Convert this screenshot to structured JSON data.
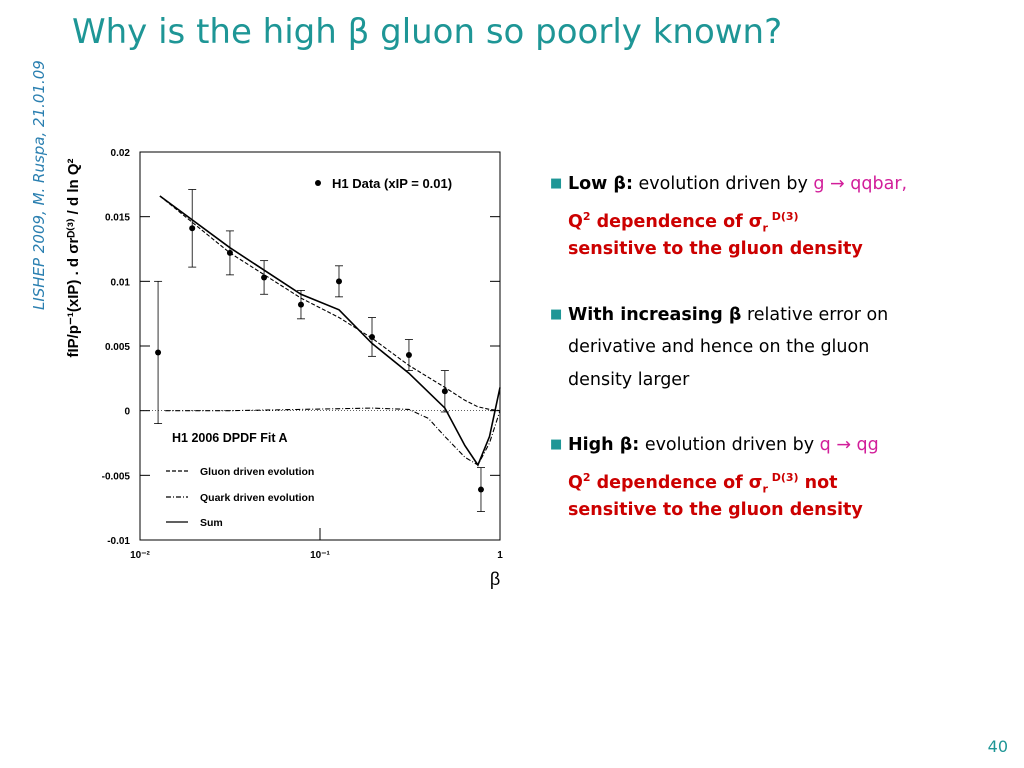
{
  "slide": {
    "title": "Why is the high β gluon so poorly known?",
    "side_label": "LISHEP 2009, M. Ruspa, 21.01.09",
    "page_number": "40",
    "bullets": [
      {
        "lines": [
          [
            "Low β:",
            " evolution driven by ",
            "g → qqbar,"
          ],
          [
            "Q",
            "2",
            " dependence of σ",
            "r",
            " D(3)"
          ],
          [
            "sensitive to the gluon density"
          ]
        ]
      },
      {
        "lines": [
          [
            "With increasing β",
            " relative error on"
          ],
          [
            "derivative and hence on the gluon"
          ],
          [
            "density larger"
          ]
        ]
      },
      {
        "lines": [
          [
            "High β:",
            " evolution driven by ",
            "q → qg"
          ],
          [
            "Q",
            "2",
            " dependence of σ",
            "r",
            " D(3)",
            " not"
          ],
          [
            "sensitive to the gluon density"
          ]
        ]
      }
    ]
  },
  "chart_data": {
    "type": "scatter-lines",
    "xlabel": "β",
    "ylabel": "fIP/p⁻¹(xIP) . d σrᴰ⁽³⁾ / d ln Q²",
    "annotation": "H1 2006 DPDF Fit A",
    "xlog": true,
    "xlim": [
      0.01,
      1
    ],
    "xticks": [
      {
        "value": 0.01,
        "label": "10⁻²"
      },
      {
        "value": 0.1,
        "label": "10⁻¹"
      },
      1
    ],
    "ylim": [
      -0.01,
      0.02
    ],
    "yticks": [
      -0.01,
      -0.005,
      0,
      0.005,
      0.01,
      0.015,
      0.02
    ],
    "series": [
      {
        "name": "H1 Data (xIP = 0.01)",
        "kind": "points",
        "color": "#000000",
        "x": [
          0.0126,
          0.0195,
          0.0316,
          0.0489,
          0.0784,
          0.1275,
          0.1945,
          0.312,
          0.494,
          0.784
        ],
        "values": [
          0.0045,
          0.0141,
          0.0122,
          0.0103,
          0.0082,
          0.01,
          0.0057,
          0.0043,
          0.0015,
          -0.0061
        ],
        "errors": [
          0.0055,
          0.003,
          0.0017,
          0.0013,
          0.0011,
          0.0012,
          0.0015,
          0.0012,
          0.0016,
          0.0017
        ]
      },
      {
        "name": "Gluon driven evolution",
        "kind": "line",
        "dash": "4,2",
        "color": "#000000",
        "x": [
          0.0129,
          0.0316,
          0.0784,
          0.1275,
          0.1945,
          0.312,
          0.494,
          0.638,
          0.754,
          0.874,
          1.0
        ],
        "values": [
          0.0166,
          0.0122,
          0.0087,
          0.0072,
          0.0056,
          0.0035,
          0.0018,
          0.0008,
          0.0003,
          0.0001,
          0.0
        ]
      },
      {
        "name": "Quark driven evolution",
        "kind": "line",
        "dash": "5,2,1,2",
        "color": "#000000",
        "x": [
          0.0138,
          0.0316,
          0.0784,
          0.1945,
          0.312,
          0.4,
          0.494,
          0.638,
          0.754,
          0.874,
          1.0
        ],
        "values": [
          0.0,
          0.0,
          0.0001,
          0.0002,
          0.0001,
          -0.0006,
          -0.002,
          -0.0036,
          -0.0042,
          -0.0025,
          0.0
        ]
      },
      {
        "name": "Sum",
        "kind": "line",
        "dash": "none",
        "color": "#000000",
        "x": [
          0.0129,
          0.0316,
          0.0784,
          0.1275,
          0.1945,
          0.312,
          0.494,
          0.638,
          0.754,
          0.874,
          1.0
        ],
        "values": [
          0.0166,
          0.0126,
          0.009,
          0.0078,
          0.0052,
          0.0029,
          0.0002,
          -0.0027,
          -0.0042,
          -0.002,
          0.0018
        ]
      }
    ]
  }
}
